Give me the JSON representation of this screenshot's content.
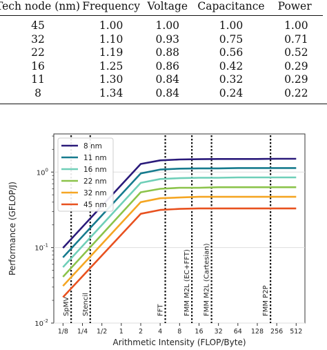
{
  "table": {
    "headers": [
      "Tech node (nm)",
      "Frequency",
      "Voltage",
      "Capacitance",
      "Power"
    ],
    "rows": [
      [
        "45",
        "1.00",
        "1.00",
        "1.00",
        "1.00"
      ],
      [
        "32",
        "1.10",
        "0.93",
        "0.75",
        "0.71"
      ],
      [
        "22",
        "1.19",
        "0.88",
        "0.56",
        "0.52"
      ],
      [
        "16",
        "1.25",
        "0.86",
        "0.42",
        "0.29"
      ],
      [
        "11",
        "1.30",
        "0.84",
        "0.32",
        "0.29"
      ],
      [
        "8",
        "1.34",
        "0.84",
        "0.24",
        "0.22"
      ]
    ]
  },
  "chart_data": {
    "type": "line",
    "xlabel": "Arithmetic Intensity (FLOP/Byte)",
    "ylabel": "Performance (GFLOP/J)",
    "xscale": "log2",
    "yscale": "log10",
    "xlim": [
      0.09,
      700
    ],
    "ylim": [
      0.01,
      3.2
    ],
    "xticks": [
      0.125,
      0.25,
      0.5,
      1,
      2,
      4,
      8,
      16,
      32,
      64,
      128,
      256,
      512
    ],
    "xtick_labels": [
      "1/8",
      "1/4",
      "1/2",
      "1",
      "2",
      "4",
      "8",
      "16",
      "32",
      "64",
      "128",
      "256",
      "512"
    ],
    "yticks": [
      0.01,
      0.1,
      1
    ],
    "ytick_labels": [
      "10^-2",
      "10^-1",
      "10^0"
    ],
    "grid": "y",
    "legend_placement": "top-left",
    "series": [
      {
        "name": "8 nm",
        "color": "#2a1a7a",
        "peak": 1.5,
        "x": [
          0.125,
          2,
          4,
          8,
          16,
          32,
          64,
          128,
          256,
          512
        ],
        "y": [
          0.099,
          1.28,
          1.43,
          1.47,
          1.48,
          1.49,
          1.49,
          1.49,
          1.5,
          1.5
        ]
      },
      {
        "name": "11 nm",
        "color": "#167b8e",
        "peak": 1.13,
        "x": [
          0.125,
          2,
          4,
          8,
          16,
          32,
          64,
          128,
          256,
          512
        ],
        "y": [
          0.074,
          0.96,
          1.08,
          1.11,
          1.12,
          1.12,
          1.13,
          1.13,
          1.13,
          1.13
        ]
      },
      {
        "name": "16 nm",
        "color": "#6fcfb8",
        "peak": 0.85,
        "x": [
          0.125,
          2,
          4,
          8,
          16,
          32,
          64,
          128,
          256,
          512
        ],
        "y": [
          0.055,
          0.72,
          0.81,
          0.83,
          0.84,
          0.84,
          0.85,
          0.85,
          0.85,
          0.85
        ]
      },
      {
        "name": "22 nm",
        "color": "#8bc34a",
        "peak": 0.63,
        "x": [
          0.125,
          2,
          4,
          8,
          16,
          32,
          64,
          128,
          256,
          512
        ],
        "y": [
          0.041,
          0.54,
          0.6,
          0.62,
          0.62,
          0.63,
          0.63,
          0.63,
          0.63,
          0.63
        ]
      },
      {
        "name": "32 nm",
        "color": "#f5a623",
        "peak": 0.47,
        "x": [
          0.125,
          2,
          4,
          8,
          16,
          32,
          64,
          128,
          256,
          512
        ],
        "y": [
          0.031,
          0.4,
          0.45,
          0.46,
          0.47,
          0.47,
          0.47,
          0.47,
          0.47,
          0.47
        ]
      },
      {
        "name": "45 nm",
        "color": "#e8511f",
        "peak": 0.33,
        "x": [
          0.125,
          2,
          4,
          8,
          16,
          32,
          64,
          128,
          256,
          512
        ],
        "y": [
          0.022,
          0.28,
          0.315,
          0.325,
          0.33,
          0.33,
          0.33,
          0.33,
          0.33,
          0.33
        ]
      }
    ],
    "annotations": [
      {
        "label": "SpMV",
        "x": 0.167
      },
      {
        "label": "Stencil",
        "x": 0.33
      },
      {
        "label": "FFT",
        "x": 4.8
      },
      {
        "label": "FMM M2L (EC+FFT)",
        "x": 12.4
      },
      {
        "label": "FMM M2L (Cartesian)",
        "x": 25.0
      },
      {
        "label": "FMM P2P",
        "x": 205
      }
    ]
  }
}
